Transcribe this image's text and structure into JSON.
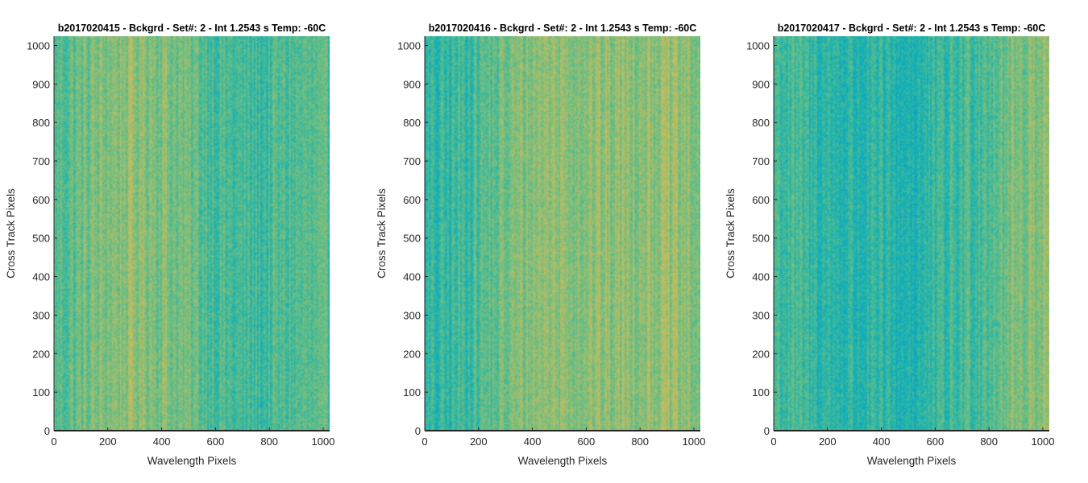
{
  "chart_data": [
    {
      "type": "heatmap",
      "title": "b2017020415 - Bckgrd - Set#: 2 - Int 1.2543 s Temp: -60C",
      "xlabel": "Wavelength Pixels",
      "ylabel": "Cross Track Pixels",
      "xlim": [
        0,
        1024
      ],
      "ylim": [
        0,
        1024
      ],
      "xticks": [
        0,
        200,
        400,
        600,
        800,
        1000
      ],
      "yticks": [
        0,
        100,
        200,
        300,
        400,
        500,
        600,
        700,
        800,
        900,
        1000
      ],
      "colormap": "parula",
      "column_intensity": [
        0.46,
        0.52,
        0.57,
        0.62,
        0.66,
        0.66,
        0.62,
        0.56,
        0.5,
        0.44,
        0.4,
        0.39,
        0.42,
        0.46,
        0.45,
        0.42
      ],
      "row_intensity": [
        0.5,
        0.52,
        0.5,
        0.48,
        0.5,
        0.53,
        0.5,
        0.48,
        0.5,
        0.52,
        0.5
      ]
    },
    {
      "type": "heatmap",
      "title": "b2017020416 - Bckgrd - Set#: 2 - Int 1.2543 s Temp: -60C",
      "xlabel": "Wavelength Pixels",
      "ylabel": "Cross Track Pixels",
      "xlim": [
        0,
        1024
      ],
      "ylim": [
        0,
        1024
      ],
      "xticks": [
        0,
        200,
        400,
        600,
        800,
        1000
      ],
      "yticks": [
        0,
        100,
        200,
        300,
        400,
        500,
        600,
        700,
        800,
        900,
        1000
      ],
      "colormap": "parula",
      "column_intensity": [
        0.3,
        0.34,
        0.4,
        0.46,
        0.52,
        0.6,
        0.66,
        0.68,
        0.67,
        0.66,
        0.65,
        0.67,
        0.69,
        0.68,
        0.64,
        0.6
      ],
      "row_intensity": [
        0.5,
        0.51,
        0.49,
        0.5,
        0.52,
        0.5,
        0.48,
        0.5,
        0.51,
        0.5,
        0.49
      ]
    },
    {
      "type": "heatmap",
      "title": "b2017020417 - Bckgrd - Set#: 2 - Int 1.2543 s Temp: -60C",
      "xlabel": "Wavelength Pixels",
      "ylabel": "Cross Track Pixels",
      "xlim": [
        0,
        1024
      ],
      "ylim": [
        0,
        1024
      ],
      "xticks": [
        0,
        200,
        400,
        600,
        800,
        1000
      ],
      "yticks": [
        0,
        100,
        200,
        300,
        400,
        500,
        600,
        700,
        800,
        900,
        1000
      ],
      "colormap": "parula",
      "column_intensity": [
        0.44,
        0.4,
        0.36,
        0.34,
        0.32,
        0.31,
        0.3,
        0.29,
        0.3,
        0.34,
        0.4,
        0.46,
        0.52,
        0.58,
        0.64,
        0.68
      ],
      "row_intensity": [
        0.52,
        0.5,
        0.48,
        0.47,
        0.49,
        0.5,
        0.5,
        0.47,
        0.46,
        0.48,
        0.5
      ]
    }
  ]
}
